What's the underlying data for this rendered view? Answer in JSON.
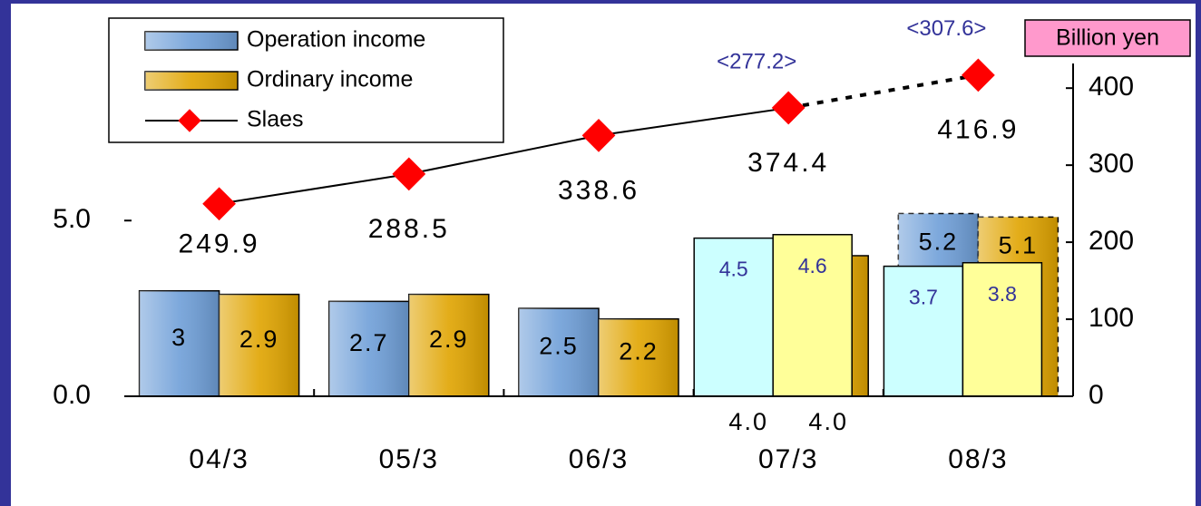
{
  "chart_data": {
    "type": "bar",
    "categories": [
      "04/3",
      "05/3",
      "06/3",
      "07/3",
      "08/3"
    ],
    "ylim": [
      0,
      9.47
    ],
    "yticks": [
      {
        "value": 0,
        "label": "0.0"
      },
      {
        "value": 5,
        "label": "5.0"
      }
    ],
    "y2lim": [
      0,
      432
    ],
    "y2ticks": [
      0,
      100,
      200,
      300,
      400
    ],
    "y2label": "Billion yen",
    "series": [
      {
        "name": "Operation income",
        "color": "#6f9fd8",
        "values": [
          3,
          2.7,
          2.5,
          4.0,
          5.2
        ],
        "value_labels": [
          "3",
          "2.7",
          "2.5",
          "4.0",
          "5.2"
        ]
      },
      {
        "name": "Ordinary income",
        "color": "#e0a400",
        "values": [
          2.9,
          2.9,
          2.2,
          4.0,
          5.1
        ],
        "value_labels": [
          "2.9",
          "2.9",
          "2.2",
          "4.0",
          "5.1"
        ]
      },
      {
        "name": "Slaes",
        "type": "line",
        "axis": "y2",
        "color": "#ff0000",
        "line_color": "#000000",
        "values": [
          249.9,
          288.5,
          338.6,
          374.4,
          416.9
        ]
      }
    ],
    "overlay_series": [
      {
        "color": "#ccffff",
        "values": [
          null,
          null,
          null,
          4.5,
          3.7
        ]
      },
      {
        "color": "#ffff99",
        "values": [
          null,
          null,
          null,
          4.6,
          3.8
        ]
      }
    ],
    "annotations": [
      "<277.2>",
      "<307.6>"
    ],
    "forecast_categories": [
      "08/3"
    ]
  }
}
